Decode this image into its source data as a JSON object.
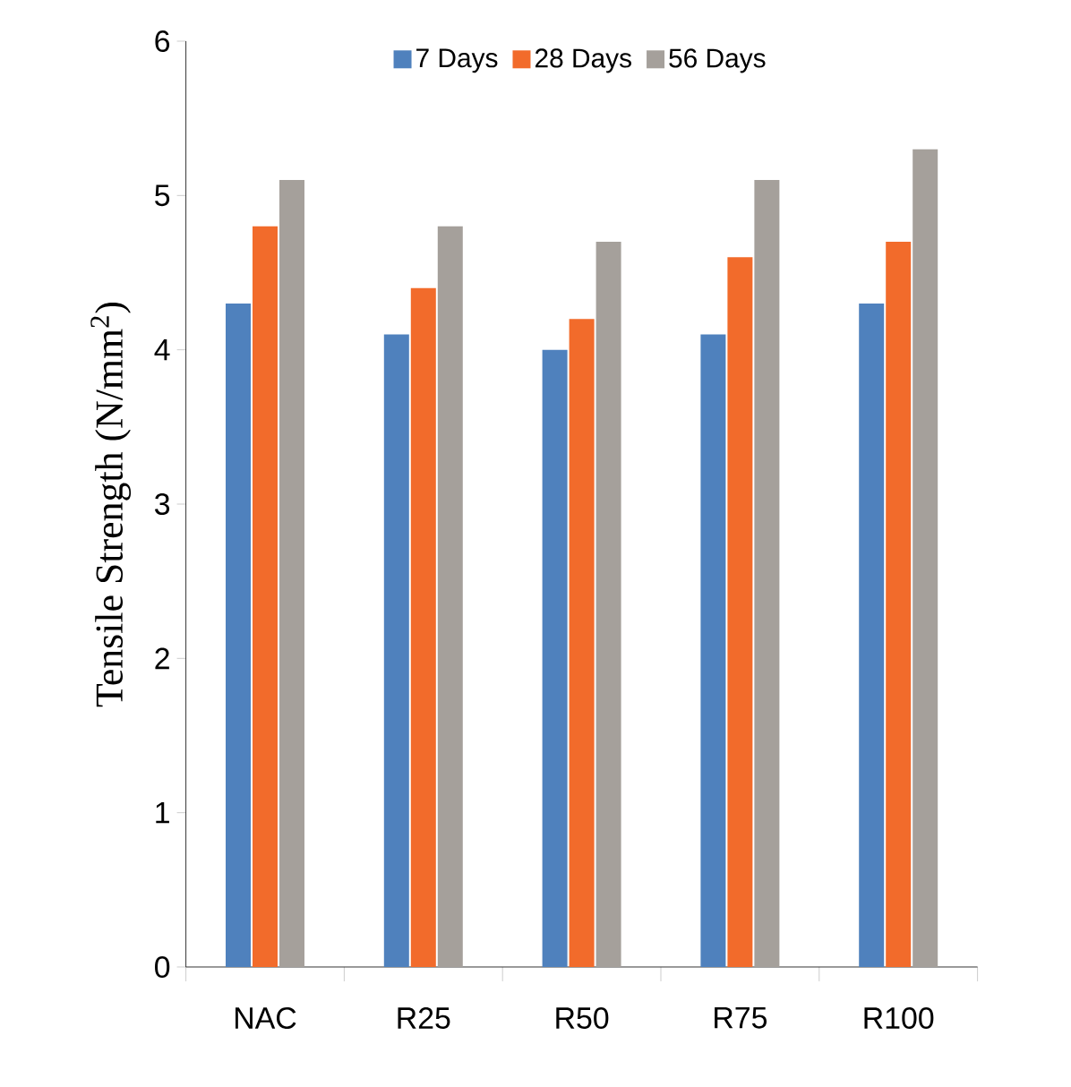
{
  "chart_data": {
    "type": "bar",
    "ylabel": "Tensile Strength (N/mm$^{2}$)",
    "categories": [
      "NAC",
      "R25",
      "R50",
      "R75",
      "R100"
    ],
    "series": [
      {
        "name": "7 Days",
        "color": "#4f81bd",
        "values": [
          4.3,
          4.1,
          4.0,
          4.1,
          4.3
        ]
      },
      {
        "name": "28 Days",
        "color": "#f26b2b",
        "values": [
          4.8,
          4.4,
          4.2,
          4.6,
          4.7
        ]
      },
      {
        "name": "56 Days",
        "color": "#a5a09b",
        "values": [
          5.1,
          4.8,
          4.7,
          5.1,
          5.3
        ]
      }
    ],
    "ylim": [
      0,
      6
    ],
    "yticks": [
      0,
      1,
      2,
      3,
      4,
      5,
      6
    ],
    "legend": "top",
    "grid": false
  }
}
